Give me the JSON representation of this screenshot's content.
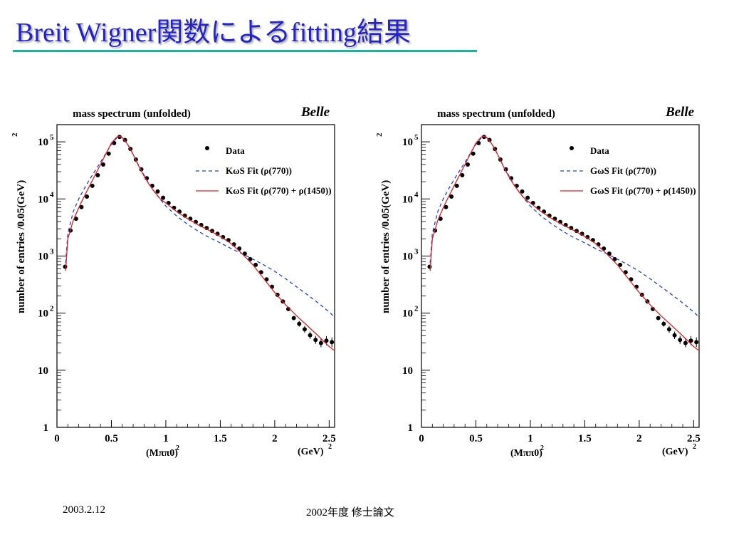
{
  "slide": {
    "title": "Breit Wigner関数によるfitting結果",
    "footer_date": "2003.2.12",
    "footer_caption": "2002年度 修士論文",
    "title_color": "#2323c8",
    "rule_color": "#19b4a0"
  },
  "chart_data": [
    {
      "type": "scatter",
      "title": "mass spectrum (unfolded)",
      "experiment_label": "Belle",
      "ylabel": "number of entries /0.05(GeV)",
      "ylabel_exponent": "2",
      "xlabel": "(Mππ0)",
      "xlabel_exponent": "2",
      "xunit": "(GeV)",
      "xunit_exponent": "2",
      "xlim": [
        0,
        2.55
      ],
      "ylim": [
        1,
        200000
      ],
      "yscale": "log",
      "xticks": [
        0,
        0.5,
        1,
        1.5,
        2,
        2.5
      ],
      "xtick_labels": [
        "0",
        "0.5",
        "1",
        "1.5",
        "2",
        "2.5"
      ],
      "yticks": [
        1,
        10,
        100,
        1000,
        10000,
        100000
      ],
      "ytick_labels": [
        {
          "base": "1",
          "exp": ""
        },
        {
          "base": "10",
          "exp": ""
        },
        {
          "base": "10",
          "exp": "2"
        },
        {
          "base": "10",
          "exp": "3"
        },
        {
          "base": "10",
          "exp": "4"
        },
        {
          "base": "10",
          "exp": "5"
        }
      ],
      "legend": {
        "placement": "top-right",
        "entries": [
          {
            "kind": "marker",
            "label": "Data"
          },
          {
            "kind": "dashed",
            "label": "KωS Fit (ρ(770))"
          },
          {
            "kind": "solid",
            "label": "KωS Fit (ρ(770) + ρ(1450))"
          }
        ]
      },
      "series": [
        {
          "name": "Data",
          "style": "points",
          "color": "#000000",
          "x": [
            0.075,
            0.125,
            0.175,
            0.225,
            0.275,
            0.325,
            0.375,
            0.425,
            0.475,
            0.525,
            0.575,
            0.625,
            0.675,
            0.725,
            0.775,
            0.825,
            0.875,
            0.925,
            0.975,
            1.025,
            1.075,
            1.125,
            1.175,
            1.225,
            1.275,
            1.325,
            1.375,
            1.425,
            1.475,
            1.525,
            1.575,
            1.625,
            1.675,
            1.725,
            1.775,
            1.825,
            1.875,
            1.925,
            1.975,
            2.025,
            2.075,
            2.125,
            2.175,
            2.225,
            2.275,
            2.325,
            2.375,
            2.425,
            2.475,
            2.525
          ],
          "y": [
            650,
            2800,
            4500,
            7200,
            11000,
            17000,
            26000,
            40000,
            62000,
            95000,
            122000,
            108000,
            75000,
            49000,
            33000,
            23000,
            17000,
            13500,
            10500,
            8500,
            7000,
            6000,
            5100,
            4500,
            3950,
            3500,
            3100,
            2750,
            2450,
            2150,
            1900,
            1600,
            1350,
            1100,
            880,
            700,
            520,
            390,
            290,
            210,
            160,
            118,
            82,
            65,
            52,
            41,
            34,
            30,
            33,
            31
          ],
          "err": [
            0,
            0,
            0,
            0,
            0,
            0,
            0,
            0,
            0,
            0,
            0,
            0,
            0,
            0,
            0,
            0,
            0,
            0,
            0,
            0,
            0,
            0,
            0,
            0,
            0,
            0,
            0,
            0,
            0,
            0,
            0,
            0,
            0,
            0,
            0,
            0,
            0,
            0,
            0,
            0,
            0,
            0,
            0,
            0.05,
            0.06,
            0.065,
            0.07,
            0.075,
            0.08,
            0.085
          ]
        },
        {
          "name": "KωS Fit (ρ(770))",
          "style": "dashed",
          "color": "#1f3fe0",
          "x": [
            0.08,
            0.1,
            0.15,
            0.2,
            0.25,
            0.3,
            0.35,
            0.4,
            0.45,
            0.5,
            0.55,
            0.58,
            0.6,
            0.65,
            0.7,
            0.75,
            0.8,
            0.85,
            0.9,
            0.95,
            1.0,
            1.1,
            1.2,
            1.3,
            1.4,
            1.5,
            1.6,
            1.7,
            1.8,
            1.9,
            2.0,
            2.1,
            2.2,
            2.3,
            2.4,
            2.5,
            2.55
          ],
          "y": [
            750,
            2500,
            6000,
            10000,
            15000,
            22000,
            31000,
            44000,
            63000,
            90000,
            118000,
            125000,
            120000,
            90000,
            60000,
            39000,
            26000,
            18000,
            13000,
            9800,
            7500,
            5000,
            3600,
            2700,
            2100,
            1700,
            1350,
            1100,
            880,
            700,
            540,
            400,
            290,
            210,
            150,
            105,
            85
          ]
        },
        {
          "name": "KωS Fit (ρ(770) + ρ(1450))",
          "style": "solid",
          "color": "#e02020",
          "x": [
            0.08,
            0.1,
            0.15,
            0.2,
            0.25,
            0.3,
            0.35,
            0.4,
            0.45,
            0.5,
            0.55,
            0.58,
            0.6,
            0.65,
            0.7,
            0.75,
            0.8,
            0.85,
            0.9,
            0.95,
            1.0,
            1.1,
            1.2,
            1.3,
            1.4,
            1.5,
            1.6,
            1.7,
            1.8,
            1.9,
            2.0,
            2.1,
            2.2,
            2.3,
            2.4,
            2.5,
            2.55
          ],
          "y": [
            550,
            2000,
            4200,
            7000,
            11000,
            17000,
            26000,
            40000,
            62000,
            95000,
            122000,
            125000,
            118000,
            90000,
            60000,
            38000,
            25000,
            17500,
            13000,
            10000,
            8500,
            6000,
            4500,
            3500,
            2800,
            2200,
            1650,
            1100,
            700,
            400,
            230,
            140,
            90,
            60,
            40,
            26,
            22
          ]
        }
      ]
    },
    {
      "type": "scatter",
      "title": "mass spectrum (unfolded)",
      "experiment_label": "Belle",
      "ylabel": "number of entries /0.05(GeV)",
      "ylabel_exponent": "2",
      "xlabel": "(Mππ0)",
      "xlabel_exponent": "2",
      "xunit": "(GeV)",
      "xunit_exponent": "2",
      "xlim": [
        0,
        2.55
      ],
      "ylim": [
        1,
        200000
      ],
      "yscale": "log",
      "xticks": [
        0,
        0.5,
        1,
        1.5,
        2,
        2.5
      ],
      "xtick_labels": [
        "0",
        "0.5",
        "1",
        "1.5",
        "2",
        "2.5"
      ],
      "yticks": [
        1,
        10,
        100,
        1000,
        10000,
        100000
      ],
      "ytick_labels": [
        {
          "base": "1",
          "exp": ""
        },
        {
          "base": "10",
          "exp": ""
        },
        {
          "base": "10",
          "exp": "2"
        },
        {
          "base": "10",
          "exp": "3"
        },
        {
          "base": "10",
          "exp": "4"
        },
        {
          "base": "10",
          "exp": "5"
        }
      ],
      "legend": {
        "placement": "top-right",
        "entries": [
          {
            "kind": "marker",
            "label": "Data"
          },
          {
            "kind": "dashed",
            "label": "GωS Fit (ρ(770))"
          },
          {
            "kind": "solid",
            "label": "GωS Fit (ρ(770) + ρ(1450))"
          }
        ]
      },
      "series": [
        {
          "name": "Data",
          "style": "points",
          "color": "#000000",
          "x": [
            0.075,
            0.125,
            0.175,
            0.225,
            0.275,
            0.325,
            0.375,
            0.425,
            0.475,
            0.525,
            0.575,
            0.625,
            0.675,
            0.725,
            0.775,
            0.825,
            0.875,
            0.925,
            0.975,
            1.025,
            1.075,
            1.125,
            1.175,
            1.225,
            1.275,
            1.325,
            1.375,
            1.425,
            1.475,
            1.525,
            1.575,
            1.625,
            1.675,
            1.725,
            1.775,
            1.825,
            1.875,
            1.925,
            1.975,
            2.025,
            2.075,
            2.125,
            2.175,
            2.225,
            2.275,
            2.325,
            2.375,
            2.425,
            2.475,
            2.525
          ],
          "y": [
            650,
            2800,
            4500,
            7200,
            11000,
            17000,
            26000,
            40000,
            62000,
            95000,
            122000,
            108000,
            75000,
            49000,
            33000,
            23000,
            17000,
            13500,
            10500,
            8500,
            7000,
            6000,
            5100,
            4500,
            3950,
            3500,
            3100,
            2750,
            2450,
            2150,
            1900,
            1600,
            1350,
            1100,
            880,
            700,
            520,
            390,
            290,
            210,
            160,
            118,
            82,
            65,
            52,
            41,
            34,
            30,
            33,
            31
          ],
          "err": [
            0,
            0,
            0,
            0,
            0,
            0,
            0,
            0,
            0,
            0,
            0,
            0,
            0,
            0,
            0,
            0,
            0,
            0,
            0,
            0,
            0,
            0,
            0,
            0,
            0,
            0,
            0,
            0,
            0,
            0,
            0,
            0,
            0,
            0,
            0,
            0,
            0,
            0,
            0,
            0,
            0,
            0,
            0,
            0.05,
            0.06,
            0.065,
            0.07,
            0.075,
            0.08,
            0.085
          ]
        },
        {
          "name": "GωS Fit (ρ(770))",
          "style": "dashed",
          "color": "#1f3fe0",
          "x": [
            0.08,
            0.1,
            0.15,
            0.2,
            0.25,
            0.3,
            0.35,
            0.4,
            0.45,
            0.5,
            0.55,
            0.58,
            0.6,
            0.65,
            0.7,
            0.75,
            0.8,
            0.85,
            0.9,
            0.95,
            1.0,
            1.1,
            1.2,
            1.3,
            1.4,
            1.5,
            1.6,
            1.7,
            1.8,
            1.9,
            2.0,
            2.1,
            2.2,
            2.3,
            2.4,
            2.5,
            2.55
          ],
          "y": [
            750,
            2500,
            6000,
            10000,
            15000,
            22000,
            31000,
            44000,
            63000,
            90000,
            118000,
            125000,
            120000,
            90000,
            60000,
            39000,
            26000,
            18000,
            13000,
            9800,
            7500,
            5000,
            3600,
            2700,
            2100,
            1700,
            1350,
            1100,
            880,
            700,
            540,
            400,
            290,
            210,
            150,
            105,
            85
          ]
        },
        {
          "name": "GωS Fit (ρ(770) + ρ(1450))",
          "style": "solid",
          "color": "#e02020",
          "x": [
            0.08,
            0.1,
            0.15,
            0.2,
            0.25,
            0.3,
            0.35,
            0.4,
            0.45,
            0.5,
            0.55,
            0.58,
            0.6,
            0.65,
            0.7,
            0.75,
            0.8,
            0.85,
            0.9,
            0.95,
            1.0,
            1.1,
            1.2,
            1.3,
            1.4,
            1.5,
            1.6,
            1.7,
            1.8,
            1.9,
            2.0,
            2.1,
            2.2,
            2.3,
            2.4,
            2.5,
            2.55
          ],
          "y": [
            550,
            2000,
            4200,
            7000,
            11000,
            17000,
            26000,
            40000,
            62000,
            95000,
            122000,
            125000,
            118000,
            90000,
            60000,
            38000,
            25000,
            17500,
            13000,
            10000,
            8500,
            6000,
            4500,
            3500,
            2800,
            2200,
            1650,
            1100,
            700,
            400,
            230,
            140,
            90,
            60,
            40,
            26,
            22
          ]
        }
      ]
    }
  ]
}
